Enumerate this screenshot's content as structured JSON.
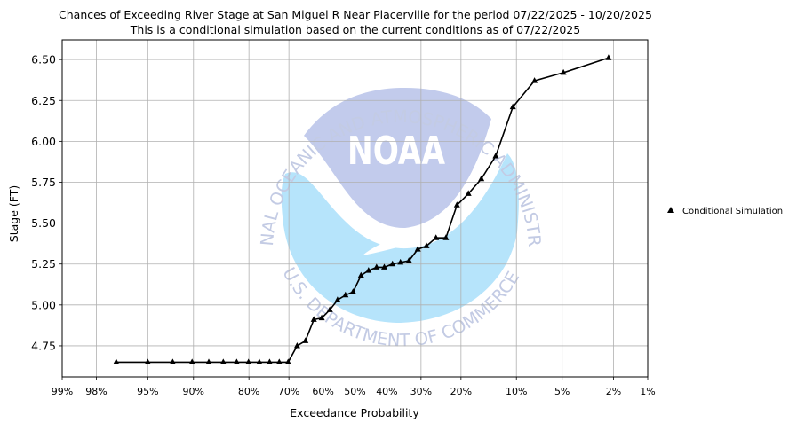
{
  "chart_data": {
    "type": "line",
    "title": "Chances of Exceeding River Stage at San Miguel R Near Placerville for the period 07/22/2025 - 10/20/2025",
    "subtitle": "This is a conditional simulation based on the current conditions as of 07/22/2025",
    "xlabel": "Exceedance Probability",
    "ylabel": "Stage (FT)",
    "x_scale": "normal-probability (reversed)",
    "xlim": [
      99,
      1
    ],
    "ylim": [
      4.56,
      6.62
    ],
    "x_ticks": [
      99,
      98,
      95,
      90,
      80,
      70,
      60,
      50,
      40,
      30,
      20,
      10,
      5,
      2,
      1
    ],
    "x_tick_labels": [
      "99%",
      "98%",
      "95%",
      "90%",
      "80%",
      "70%",
      "60%",
      "50%",
      "40%",
      "30%",
      "20%",
      "10%",
      "5%",
      "2%",
      "1%"
    ],
    "y_ticks": [
      4.75,
      5.0,
      5.25,
      5.5,
      5.75,
      6.0,
      6.25,
      6.5
    ],
    "y_tick_labels": [
      "4.75",
      "5.00",
      "5.25",
      "5.50",
      "5.75",
      "6.00",
      "6.25",
      "6.50"
    ],
    "grid": true,
    "legend_position": "outside-right",
    "watermark": "NOAA logo",
    "watermark_text": {
      "top": "NATIONAL OCEANIC AND ATMOSPHERIC ADMINISTRATION",
      "bottom": "U.S. DEPARTMENT OF COMMERCE",
      "logo": "NOAA"
    },
    "series": [
      {
        "name": "Conditional Simulation",
        "color": "#000000",
        "marker": "triangle",
        "points": [
          [
            97.1,
            4.65
          ],
          [
            95.0,
            4.65
          ],
          [
            92.6,
            4.65
          ],
          [
            90.2,
            4.65
          ],
          [
            87.7,
            4.65
          ],
          [
            85.2,
            4.65
          ],
          [
            82.6,
            4.65
          ],
          [
            80.1,
            4.65
          ],
          [
            77.6,
            4.65
          ],
          [
            75.1,
            4.65
          ],
          [
            72.6,
            4.65
          ],
          [
            70.2,
            4.65
          ],
          [
            67.7,
            4.75
          ],
          [
            65.3,
            4.78
          ],
          [
            62.8,
            4.91
          ],
          [
            60.4,
            4.92
          ],
          [
            57.9,
            4.97
          ],
          [
            55.5,
            5.03
          ],
          [
            53.0,
            5.06
          ],
          [
            50.6,
            5.08
          ],
          [
            48.1,
            5.18
          ],
          [
            45.7,
            5.21
          ],
          [
            43.2,
            5.23
          ],
          [
            40.8,
            5.23
          ],
          [
            38.3,
            5.25
          ],
          [
            35.9,
            5.26
          ],
          [
            33.4,
            5.27
          ],
          [
            30.9,
            5.34
          ],
          [
            28.5,
            5.36
          ],
          [
            26.0,
            5.41
          ],
          [
            23.5,
            5.41
          ],
          [
            20.9,
            5.61
          ],
          [
            18.4,
            5.68
          ],
          [
            15.8,
            5.77
          ],
          [
            13.2,
            5.91
          ],
          [
            10.5,
            6.21
          ],
          [
            7.7,
            6.37
          ],
          [
            4.9,
            6.42
          ],
          [
            2.2,
            6.51
          ]
        ]
      }
    ]
  }
}
